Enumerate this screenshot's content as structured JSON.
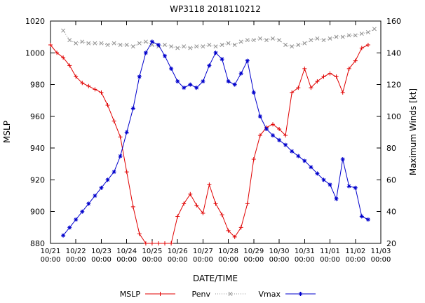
{
  "title": "WP3118 2018110212",
  "chart_data": {
    "type": "line",
    "title": "WP3118 2018110212",
    "x_axis": {
      "label": "DATE/TIME",
      "unit": "days since 2018-10-21 00:00Z",
      "range_days": [
        0,
        13
      ],
      "tick_dates": [
        "10/21",
        "10/22",
        "10/23",
        "10/24",
        "10/25",
        "10/26",
        "10/27",
        "10/28",
        "10/29",
        "10/30",
        "10/31",
        "11/01",
        "11/02",
        "11/03"
      ],
      "tick_time": "00:00"
    },
    "left_axis": {
      "label": "MSLP",
      "range": [
        880,
        1020
      ],
      "tick_step": 20
    },
    "right_axis": {
      "label": "Maximum Winds [kt]",
      "range": [
        20,
        160
      ],
      "tick_step": 20
    },
    "grid": false,
    "legend_position": "bottom-center",
    "series": [
      {
        "name": "MSLP",
        "axis": "left",
        "color": "#e00000",
        "marker": "plus",
        "line": "solid",
        "points": [
          [
            0,
            1005
          ],
          [
            0.25,
            1000
          ],
          [
            0.5,
            997
          ],
          [
            0.75,
            992
          ],
          [
            1,
            985
          ],
          [
            1.25,
            981
          ],
          [
            1.5,
            979
          ],
          [
            1.75,
            977
          ],
          [
            2,
            975
          ],
          [
            2.25,
            967
          ],
          [
            2.5,
            957
          ],
          [
            2.75,
            947
          ],
          [
            3,
            925
          ],
          [
            3.25,
            903
          ],
          [
            3.5,
            886
          ],
          [
            3.75,
            880
          ],
          [
            4,
            880
          ],
          [
            4.25,
            880
          ],
          [
            4.5,
            880
          ],
          [
            4.75,
            880
          ],
          [
            5,
            897
          ],
          [
            5.25,
            905
          ],
          [
            5.5,
            911
          ],
          [
            5.75,
            904
          ],
          [
            6,
            899
          ],
          [
            6.25,
            917
          ],
          [
            6.5,
            905
          ],
          [
            6.75,
            898
          ],
          [
            7,
            888
          ],
          [
            7.25,
            884
          ],
          [
            7.5,
            890
          ],
          [
            7.75,
            905
          ],
          [
            8,
            933
          ],
          [
            8.25,
            948
          ],
          [
            8.5,
            953
          ],
          [
            8.75,
            955
          ],
          [
            9,
            952
          ],
          [
            9.25,
            948
          ],
          [
            9.5,
            975
          ],
          [
            9.75,
            978
          ],
          [
            10,
            990
          ],
          [
            10.25,
            978
          ],
          [
            10.5,
            982
          ],
          [
            10.75,
            985
          ],
          [
            11,
            987
          ],
          [
            11.25,
            985
          ],
          [
            11.5,
            975
          ],
          [
            11.75,
            990
          ],
          [
            12,
            995
          ],
          [
            12.25,
            1003
          ],
          [
            12.5,
            1005
          ]
        ]
      },
      {
        "name": "Penv",
        "axis": "left",
        "color": "#909090",
        "marker": "cross",
        "line": "dotted",
        "points": [
          [
            0.5,
            1014
          ],
          [
            0.75,
            1008
          ],
          [
            1,
            1006
          ],
          [
            1.25,
            1007
          ],
          [
            1.5,
            1006
          ],
          [
            1.75,
            1006
          ],
          [
            2,
            1006
          ],
          [
            2.25,
            1005
          ],
          [
            2.5,
            1006
          ],
          [
            2.75,
            1005
          ],
          [
            3,
            1005
          ],
          [
            3.25,
            1004
          ],
          [
            3.5,
            1006
          ],
          [
            3.75,
            1007
          ],
          [
            4,
            1005
          ],
          [
            4.25,
            1004
          ],
          [
            4.5,
            1005
          ],
          [
            4.75,
            1004
          ],
          [
            5,
            1003
          ],
          [
            5.25,
            1004
          ],
          [
            5.5,
            1003
          ],
          [
            5.75,
            1004
          ],
          [
            6,
            1004
          ],
          [
            6.25,
            1005
          ],
          [
            6.5,
            1004
          ],
          [
            6.75,
            1005
          ],
          [
            7,
            1006
          ],
          [
            7.25,
            1005
          ],
          [
            7.5,
            1007
          ],
          [
            7.75,
            1008
          ],
          [
            8,
            1008
          ],
          [
            8.25,
            1009
          ],
          [
            8.5,
            1008
          ],
          [
            8.75,
            1009
          ],
          [
            9,
            1008
          ],
          [
            9.25,
            1005
          ],
          [
            9.5,
            1004
          ],
          [
            9.75,
            1005
          ],
          [
            10,
            1006
          ],
          [
            10.25,
            1008
          ],
          [
            10.5,
            1009
          ],
          [
            10.75,
            1008
          ],
          [
            11,
            1009
          ],
          [
            11.25,
            1010
          ],
          [
            11.5,
            1010
          ],
          [
            11.75,
            1011
          ],
          [
            12,
            1011
          ],
          [
            12.25,
            1012
          ],
          [
            12.5,
            1013
          ],
          [
            12.75,
            1015
          ]
        ]
      },
      {
        "name": "Vmax",
        "axis": "right",
        "color": "#0000cc",
        "marker": "star",
        "line": "solid",
        "points": [
          [
            0.5,
            25
          ],
          [
            0.75,
            30
          ],
          [
            1,
            35
          ],
          [
            1.25,
            40
          ],
          [
            1.5,
            45
          ],
          [
            1.75,
            50
          ],
          [
            2,
            55
          ],
          [
            2.25,
            60
          ],
          [
            2.5,
            65
          ],
          [
            2.75,
            75
          ],
          [
            3,
            90
          ],
          [
            3.25,
            105
          ],
          [
            3.5,
            125
          ],
          [
            3.75,
            140
          ],
          [
            4,
            147
          ],
          [
            4.25,
            145
          ],
          [
            4.5,
            138
          ],
          [
            4.75,
            130
          ],
          [
            5,
            122
          ],
          [
            5.25,
            118
          ],
          [
            5.5,
            120
          ],
          [
            5.75,
            118
          ],
          [
            6,
            122
          ],
          [
            6.25,
            132
          ],
          [
            6.5,
            140
          ],
          [
            6.75,
            136
          ],
          [
            7,
            122
          ],
          [
            7.25,
            120
          ],
          [
            7.5,
            127
          ],
          [
            7.75,
            135
          ],
          [
            8,
            115
          ],
          [
            8.25,
            100
          ],
          [
            8.5,
            92
          ],
          [
            8.75,
            88
          ],
          [
            9,
            85
          ],
          [
            9.25,
            82
          ],
          [
            9.5,
            78
          ],
          [
            9.75,
            75
          ],
          [
            10,
            72
          ],
          [
            10.25,
            68
          ],
          [
            10.5,
            64
          ],
          [
            10.75,
            60
          ],
          [
            11,
            57
          ],
          [
            11.25,
            48
          ],
          [
            11.5,
            73
          ],
          [
            11.75,
            56
          ],
          [
            12,
            55
          ],
          [
            12.25,
            37
          ],
          [
            12.5,
            35
          ]
        ]
      }
    ]
  },
  "legend": {
    "items": [
      "MSLP",
      "Penv",
      "Vmax"
    ]
  }
}
